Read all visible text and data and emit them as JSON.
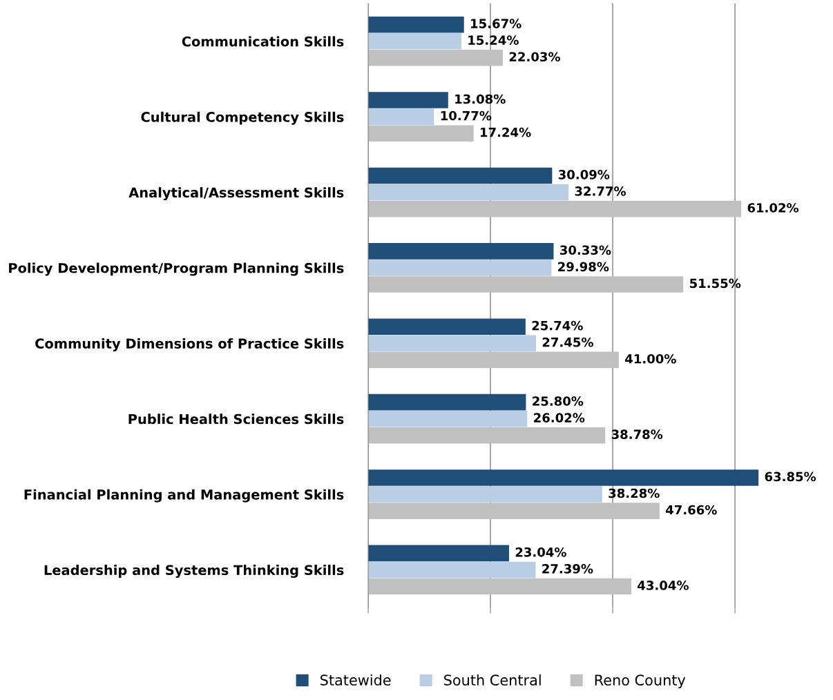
{
  "chart_data": {
    "type": "bar",
    "orientation": "horizontal",
    "categories": [
      "Communication Skills",
      "Cultural Competency Skills",
      "Analytical/Assessment Skills",
      "Policy Development/Program Planning Skills",
      "Community Dimensions of Practice Skills",
      "Public Health Sciences Skills",
      "Financial Planning and Management Skills",
      "Leadership and Systems Thinking Skills"
    ],
    "series": [
      {
        "name": "Statewide",
        "color": "#1f4e79",
        "values": [
          15.67,
          13.08,
          30.09,
          30.33,
          25.74,
          25.8,
          63.85,
          23.04
        ],
        "value_labels": [
          "15.67%",
          "13.08%",
          "30.09%",
          "30.33%",
          "25.74%",
          "25.80%",
          "63.85%",
          "23.04%"
        ]
      },
      {
        "name": "South Central",
        "color": "#b9cde5",
        "values": [
          15.24,
          10.77,
          32.77,
          29.98,
          27.45,
          26.02,
          38.28,
          27.39
        ],
        "value_labels": [
          "15.24%",
          "10.77%",
          "32.77%",
          "29.98%",
          "27.45%",
          "26.02%",
          "38.28%",
          "27.39%"
        ]
      },
      {
        "name": "Reno County",
        "color": "#c0c0c0",
        "values": [
          22.03,
          17.24,
          61.02,
          51.55,
          41.0,
          38.78,
          47.66,
          43.04
        ],
        "value_labels": [
          "22.03%",
          "17.24%",
          "61.02%",
          "51.55%",
          "41.00%",
          "38.78%",
          "47.66%",
          "43.04%"
        ]
      }
    ],
    "grid": "x",
    "legend": "bottom"
  }
}
